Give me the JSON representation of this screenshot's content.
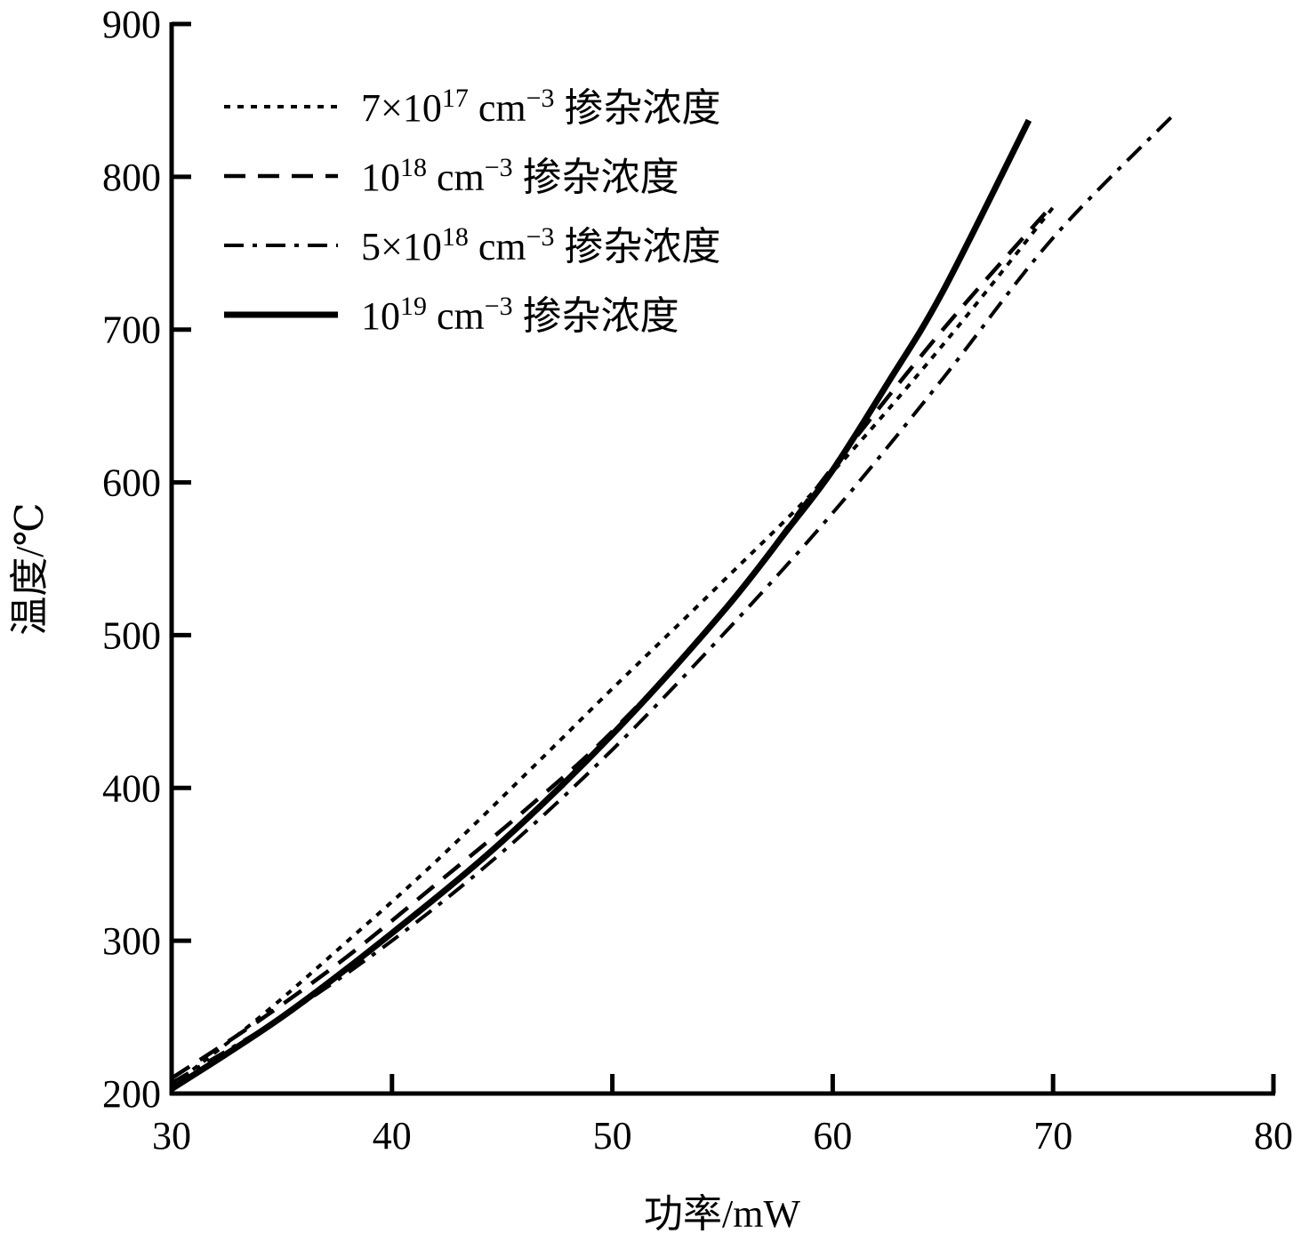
{
  "chart_data": {
    "type": "line",
    "xlabel": "功率/mW",
    "ylabel": "温度/℃",
    "xlim": [
      30,
      80
    ],
    "ylim": [
      200,
      900
    ],
    "xticks": [
      "30",
      "40",
      "50",
      "60",
      "70",
      "80"
    ],
    "yticks": [
      "200",
      "300",
      "400",
      "500",
      "600",
      "700",
      "800",
      "900"
    ],
    "grid": false,
    "legend_position": "top-left",
    "series": [
      {
        "name": "7×10^17 cm^-3 掺杂浓度",
        "base": "7×10",
        "sup": "17",
        "unit": " cm",
        "unit_sup": "−3",
        "suffix": " 掺杂浓度",
        "style": "dotted",
        "x": [
          30,
          34,
          38,
          42,
          46.7,
          50,
          55,
          60,
          65,
          70
        ],
        "y": [
          205,
          250,
          300,
          352,
          418,
          465,
          535,
          607,
          690,
          780
        ]
      },
      {
        "name": "10^18 cm^-3 掺杂浓度",
        "base": "10",
        "sup": "18",
        "unit": " cm",
        "unit_sup": "−3",
        "suffix": " 掺杂浓度",
        "style": "dashed",
        "x": [
          30,
          34,
          38,
          42,
          46,
          50,
          55,
          60,
          65,
          70
        ],
        "y": [
          210,
          248,
          290,
          337,
          385,
          437,
          515,
          610,
          700,
          782
        ]
      },
      {
        "name": "5×10^18 cm^-3 掺杂浓度",
        "base": "5×10",
        "sup": "18",
        "unit": " cm",
        "unit_sup": "−3",
        "suffix": " 掺杂浓度",
        "style": "dashdot",
        "x": [
          30,
          35,
          40,
          45,
          50,
          55,
          60,
          65,
          70,
          75.5
        ],
        "y": [
          207,
          250,
          300,
          358,
          425,
          500,
          580,
          668,
          760,
          841
        ]
      },
      {
        "name": "10^19 cm^-3 掺杂浓度",
        "base": "10",
        "sup": "19",
        "unit": " cm",
        "unit_sup": "−3",
        "suffix": " 掺杂浓度",
        "style": "solid",
        "x": [
          30,
          35,
          40,
          45,
          50,
          55,
          58,
          60,
          62.5,
          65,
          68.9
        ],
        "y": [
          203,
          250,
          305,
          365,
          435,
          515,
          570,
          608,
          665,
          725,
          837
        ]
      }
    ]
  }
}
